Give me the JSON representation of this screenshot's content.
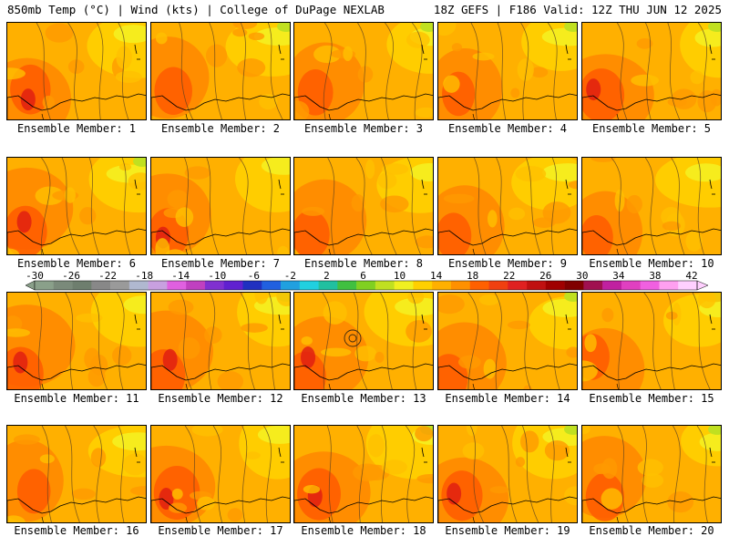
{
  "header": {
    "left": "850mb Temp (°C) | Wind (kts) | College of DuPage NEXLAB",
    "right": "18Z GEFS | F186 Valid: 12Z THU JUN 12 2025"
  },
  "panel_label_prefix": "Ensemble Member:",
  "members": [
    1,
    2,
    3,
    4,
    5,
    6,
    7,
    8,
    9,
    10,
    11,
    12,
    13,
    14,
    15,
    16,
    17,
    18,
    19,
    20
  ],
  "colorbar": {
    "tick_labels": [
      "-30",
      "-26",
      "-22",
      "-18",
      "-14",
      "-10",
      "-6",
      "-2",
      "2",
      "6",
      "10",
      "14",
      "18",
      "22",
      "26",
      "30",
      "34",
      "38",
      "42"
    ],
    "colors": [
      "#8aa08a",
      "#7a8a7a",
      "#6e7e6e",
      "#888888",
      "#9a9a9a",
      "#b0b8d0",
      "#c8a0e0",
      "#e060e0",
      "#c040c0",
      "#8030d0",
      "#6020d0",
      "#2030c0",
      "#2060e0",
      "#20a0e0",
      "#20d0e0",
      "#20c0a0",
      "#40c040",
      "#80d020",
      "#c0e020",
      "#f0f020",
      "#ffd000",
      "#ffb000",
      "#ff9000",
      "#ff6000",
      "#f04010",
      "#e02020",
      "#c01010",
      "#a00000",
      "#800000",
      "#a01050",
      "#c020a0",
      "#e040c0",
      "#f060e0",
      "#ffa0f0",
      "#ffd0ff"
    ]
  }
}
